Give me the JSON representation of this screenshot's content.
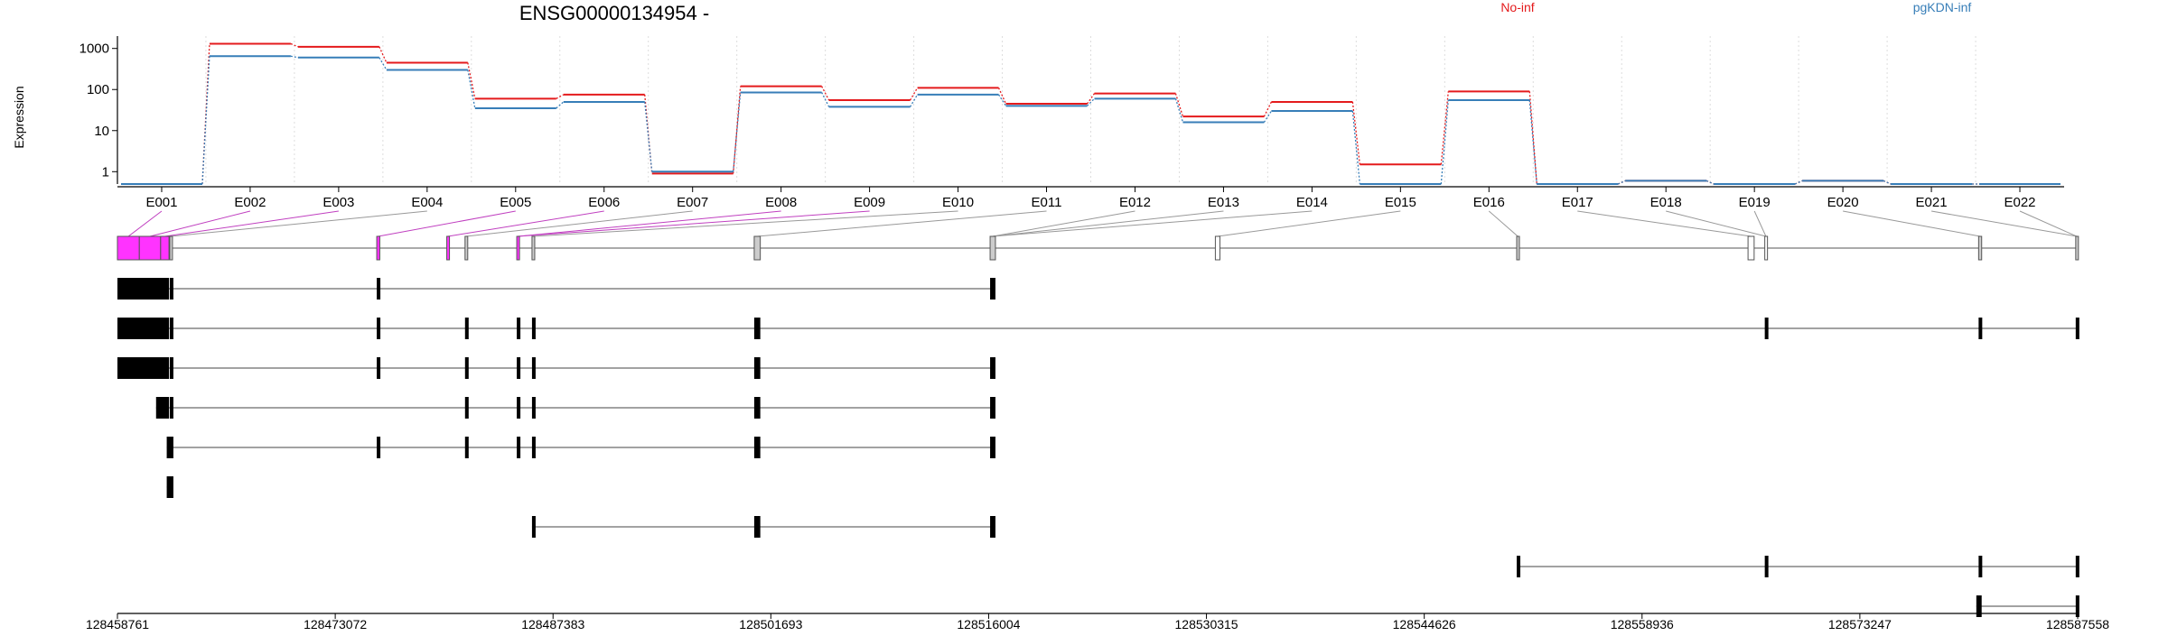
{
  "chart_data": {
    "type": "line",
    "title": "ENSG00000134954 -",
    "ylabel": "Expression",
    "yscale": "log",
    "ylim": [
      0.5,
      2000
    ],
    "yticks": [
      1,
      10,
      100,
      1000
    ],
    "ytick_labels": [
      "1",
      "10",
      "100",
      "1000"
    ],
    "categories": [
      "E001",
      "E002",
      "E003",
      "E004",
      "E005",
      "E006",
      "E007",
      "E008",
      "E009",
      "E010",
      "E011",
      "E012",
      "E013",
      "E014",
      "E015",
      "E016",
      "E017",
      "E018",
      "E019",
      "E020",
      "E021",
      "E022"
    ],
    "series": [
      {
        "name": "No-inf",
        "color": "#e41a1c",
        "values": [
          0.5,
          1300,
          1100,
          450,
          60,
          75,
          0.9,
          120,
          55,
          110,
          45,
          80,
          22,
          50,
          1.5,
          90,
          0.5,
          0.6,
          0.5,
          0.6,
          0.5,
          0.5
        ]
      },
      {
        "name": "pgKDN-inf",
        "color": "#377eb8",
        "values": [
          0.5,
          650,
          600,
          300,
          35,
          50,
          1.0,
          85,
          38,
          75,
          40,
          60,
          16,
          30,
          0.5,
          55,
          0.5,
          0.6,
          0.5,
          0.6,
          0.5,
          0.5
        ]
      }
    ],
    "genomic_axis": {
      "tick_labels": [
        "128458761",
        "128473072",
        "128487383",
        "128501693",
        "128516004",
        "128530315",
        "128544626",
        "128558936",
        "128573247",
        "128587558"
      ]
    },
    "exon_highlight_color": "#ff00ff",
    "grid": true,
    "legend": "top-right"
  }
}
